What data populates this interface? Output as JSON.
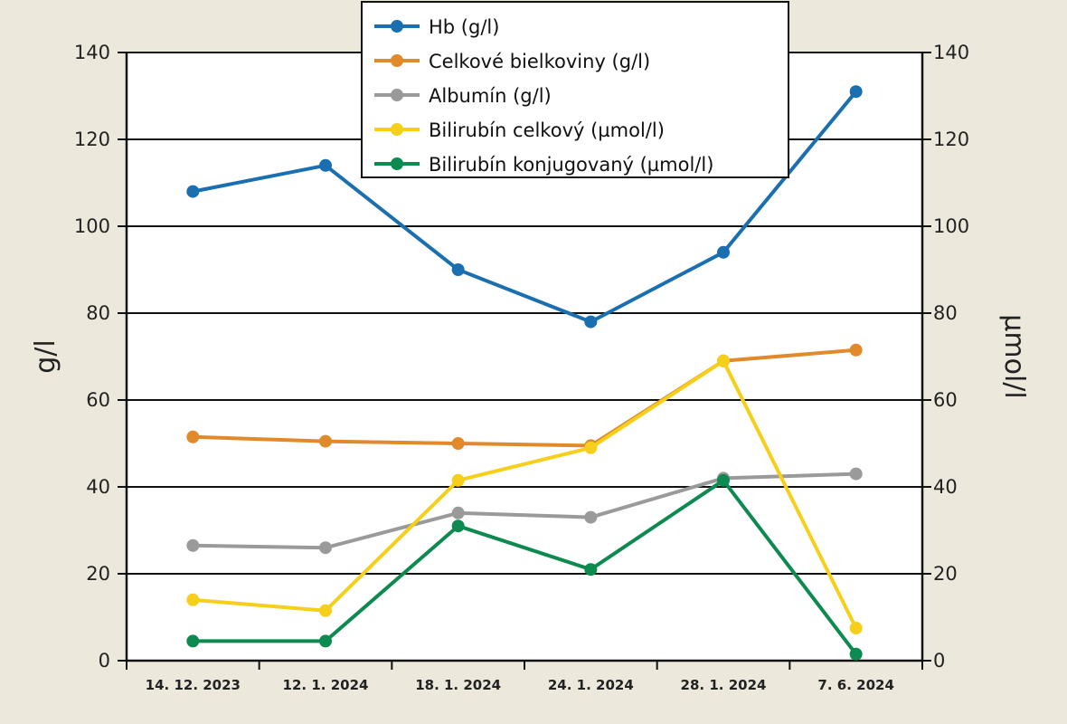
{
  "chart_data": {
    "type": "line",
    "categories": [
      "14. 12. 2023",
      "12. 1. 2024",
      "18. 1. 2024",
      "24. 1. 2024",
      "28. 1. 2024",
      "7. 6. 2024"
    ],
    "ylabel_left": "g/l",
    "ylabel_right": "µmol/l",
    "ylim": [
      0,
      140
    ],
    "yticks": [
      0,
      20,
      40,
      60,
      80,
      100,
      120,
      140
    ],
    "grid": true,
    "legend_placement": "top-center",
    "series": [
      {
        "name": "Hb (g/l)",
        "color": "#1a6fb0",
        "values": [
          108,
          114,
          90,
          78,
          94,
          131
        ]
      },
      {
        "name": "Celkové bielkoviny (g/l)",
        "color": "#e08a2c",
        "values": [
          51.5,
          50.5,
          50,
          49.5,
          69,
          71.5
        ]
      },
      {
        "name": "Albumín (g/l)",
        "color": "#9a9a9a",
        "values": [
          26.5,
          26,
          34,
          33,
          42,
          43
        ]
      },
      {
        "name": "Bilirubín celkový (µmol/l)",
        "color": "#f5cf1a",
        "values": [
          14,
          11.5,
          41.5,
          49,
          69,
          7.5
        ]
      },
      {
        "name": "Bilirubín konjugovaný (µmol/l)",
        "color": "#0d8a4f",
        "values": [
          4.5,
          4.5,
          31,
          21,
          41.5,
          1.5
        ]
      }
    ]
  }
}
